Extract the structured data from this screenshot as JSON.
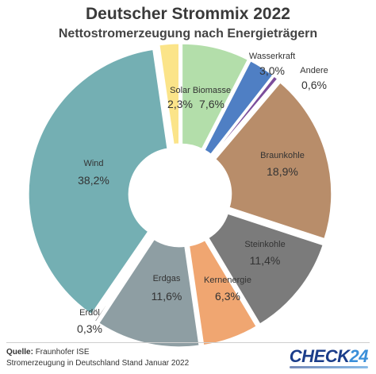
{
  "chart_data": {
    "type": "pie",
    "title": "Deutscher Strommix 2022",
    "subtitle": "Nettostromerzeugung nach Energieträgern",
    "unit": "%",
    "slices": [
      {
        "label": "Biomasse",
        "value": 7.6,
        "value_text": "7,6%",
        "color": "#b3deaa"
      },
      {
        "label": "Wasserkraft",
        "value": 3.0,
        "value_text": "3,0%",
        "color": "#4f7fc4"
      },
      {
        "label": "Andere",
        "value": 0.6,
        "value_text": "0,6%",
        "color": "#7c4e9c"
      },
      {
        "label": "Braunkohle",
        "value": 18.9,
        "value_text": "18,9%",
        "color": "#b88d6a"
      },
      {
        "label": "Steinkohle",
        "value": 11.4,
        "value_text": "11,4%",
        "color": "#7b7b7b"
      },
      {
        "label": "Kernenergie",
        "value": 6.3,
        "value_text": "6,3%",
        "color": "#f0a671"
      },
      {
        "label": "Erdgas",
        "value": 11.6,
        "value_text": "11,6%",
        "color": "#8e9ea3"
      },
      {
        "label": "Erdöl",
        "value": 0.3,
        "value_text": "0,3%",
        "color": "#2b2b2b"
      },
      {
        "label": "Wind",
        "value": 38.2,
        "value_text": "38,2%",
        "color": "#74afb3"
      },
      {
        "label": "Solar",
        "value": 2.3,
        "value_text": "2,3%",
        "color": "#fbe489"
      }
    ]
  },
  "footer": {
    "source_label": "Quelle:",
    "source_value": "Fraunhofer ISE",
    "note": "Stromerzeugung in Deutschland Stand Januar 2022"
  },
  "brand": {
    "name": "CHECK",
    "number": "24"
  }
}
